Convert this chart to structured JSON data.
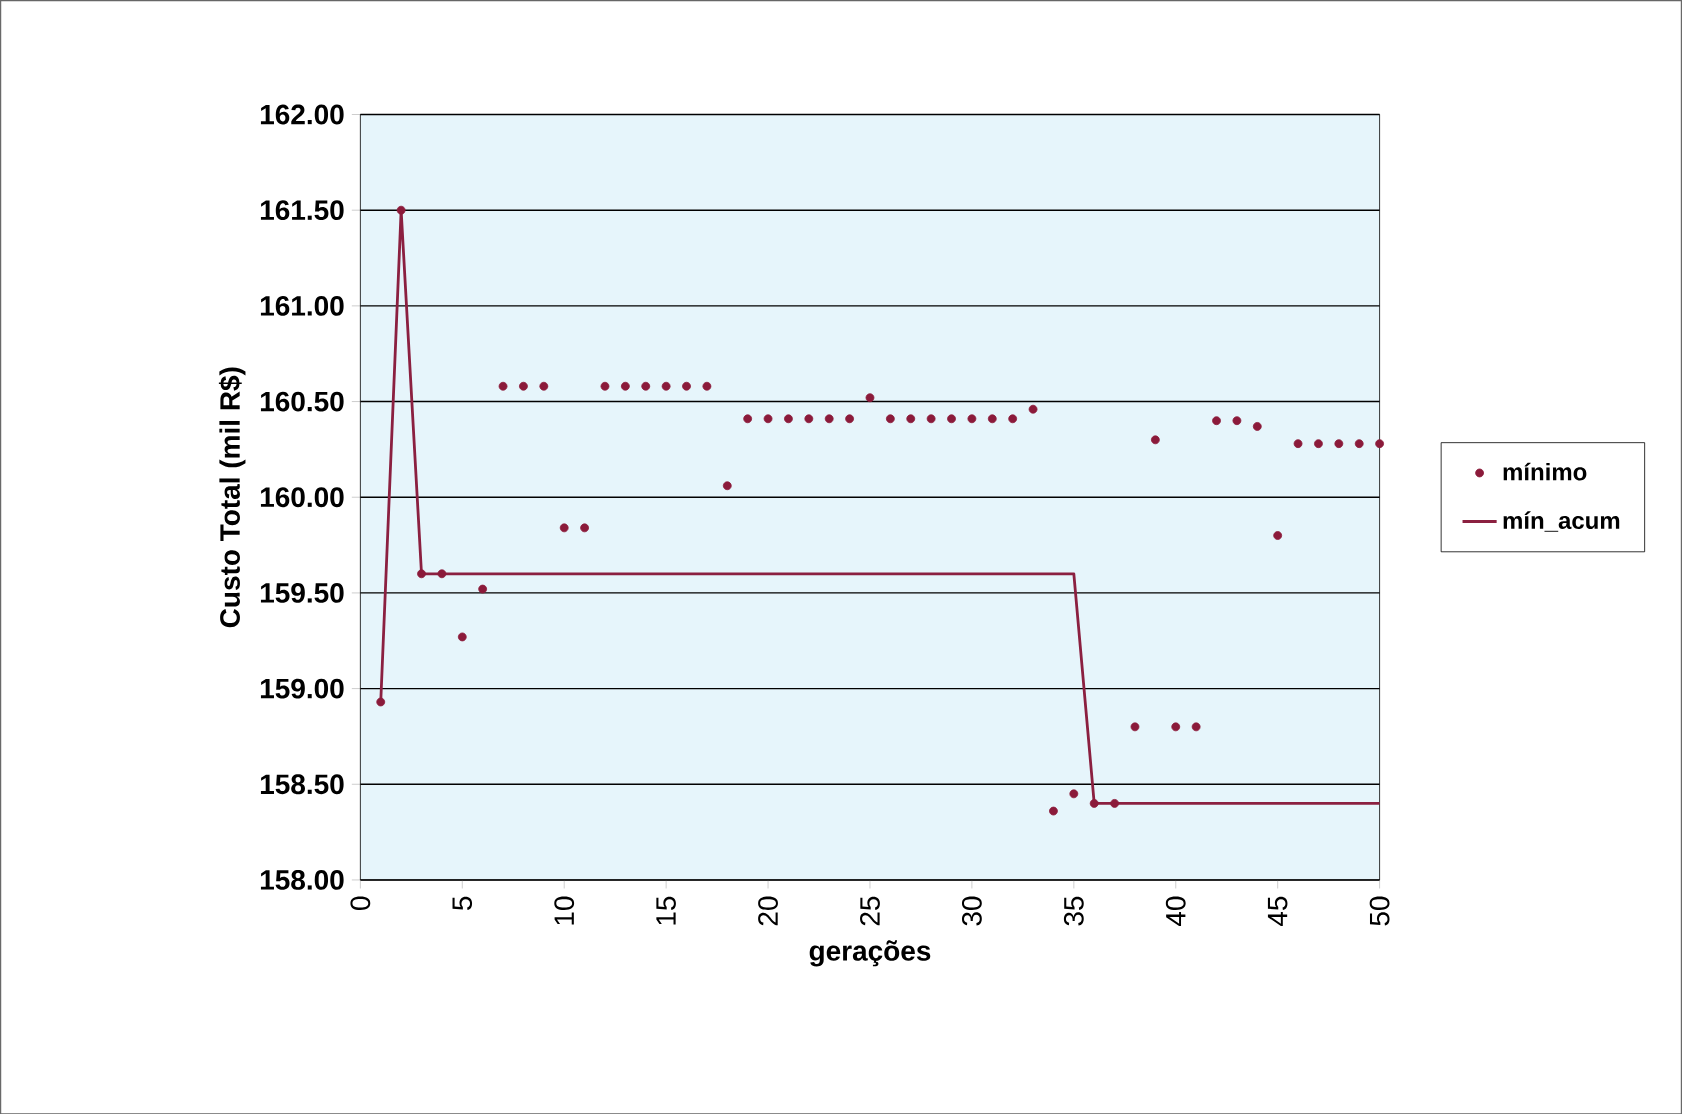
{
  "chart_data": {
    "type": "scatter",
    "xlabel": "gerações",
    "ylabel": "Custo Total (mil R$)",
    "x": [
      1,
      2,
      3,
      4,
      5,
      6,
      7,
      8,
      9,
      10,
      11,
      12,
      13,
      14,
      15,
      16,
      17,
      18,
      19,
      20,
      21,
      22,
      23,
      24,
      25,
      26,
      27,
      28,
      29,
      30,
      31,
      32,
      33,
      34,
      35,
      36,
      37,
      38,
      39,
      40,
      41,
      42,
      43,
      44,
      45,
      46,
      47,
      48,
      49,
      50
    ],
    "series": [
      {
        "name": "mínimo",
        "color": "#8b1a3a",
        "marker": "circle",
        "values": [
          158.93,
          161.5,
          159.6,
          159.6,
          159.27,
          159.52,
          160.58,
          160.58,
          160.58,
          159.84,
          159.84,
          160.58,
          160.58,
          160.58,
          160.58,
          160.58,
          160.58,
          160.06,
          160.41,
          160.41,
          160.41,
          160.41,
          160.41,
          160.41,
          160.52,
          160.41,
          160.41,
          160.41,
          160.41,
          160.41,
          160.41,
          160.41,
          160.46,
          158.36,
          158.45,
          158.4,
          158.4,
          158.8,
          160.3,
          158.8,
          158.8,
          160.4,
          160.4,
          160.37,
          159.8,
          160.28,
          160.28,
          160.28,
          160.28,
          160.28
        ]
      },
      {
        "name": "mín_acum",
        "type": "line",
        "color": "#8b2040",
        "marker": "none",
        "line_style": "solid",
        "values": [
          158.93,
          161.5,
          159.6,
          159.6,
          159.6,
          159.6,
          159.6,
          159.6,
          159.6,
          159.6,
          159.6,
          159.6,
          159.6,
          159.6,
          159.6,
          159.6,
          159.6,
          159.6,
          159.6,
          159.6,
          159.6,
          159.6,
          159.6,
          159.6,
          159.6,
          159.6,
          159.6,
          159.6,
          159.6,
          159.6,
          159.6,
          159.6,
          159.6,
          159.6,
          159.6,
          158.4,
          158.4,
          158.4,
          158.4,
          158.4,
          158.4,
          158.4,
          158.4,
          158.4,
          158.4,
          158.4,
          158.4,
          158.4,
          158.4,
          158.4
        ]
      }
    ],
    "xlim": [
      0,
      50
    ],
    "xticks": [
      0,
      5,
      10,
      15,
      20,
      25,
      30,
      35,
      40,
      45,
      50
    ],
    "ylim": [
      158,
      162
    ],
    "yticks": [
      {
        "value": 158,
        "label": "158.00"
      },
      {
        "value": 158.5,
        "label": "158.50"
      },
      {
        "value": 159,
        "label": "159.00"
      },
      {
        "value": 159.5,
        "label": "159.50"
      },
      {
        "value": 160,
        "label": "160.00"
      },
      {
        "value": 160.5,
        "label": "160.50"
      },
      {
        "value": 161,
        "label": "161.00"
      },
      {
        "value": 161.5,
        "label": "161.50"
      },
      {
        "value": 162,
        "label": "162.00"
      }
    ],
    "grid": "y",
    "legend": "right"
  }
}
